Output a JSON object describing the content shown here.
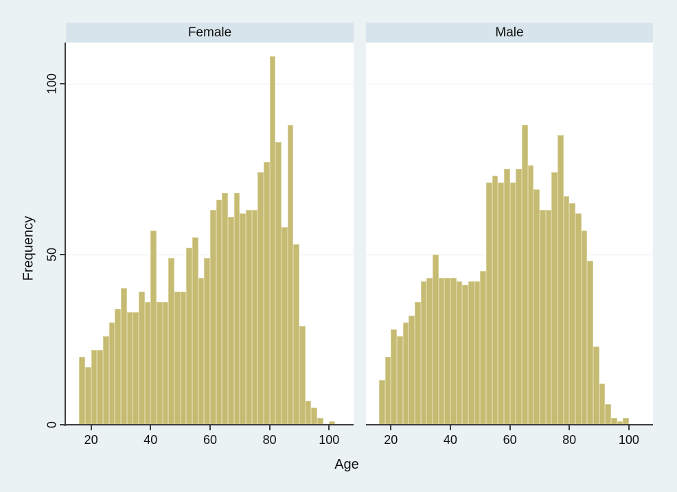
{
  "chart_data": {
    "type": "histogram",
    "faceted_by": "sex",
    "facet_titles": [
      "Female",
      "Male"
    ],
    "xlabel": "Age",
    "ylabel": "Frequency",
    "bin_width": 2,
    "x_ticks": [
      20,
      40,
      60,
      80,
      100
    ],
    "y_ticks": [
      0,
      50,
      100
    ],
    "ylim": [
      0,
      112
    ],
    "grid": "horizontal gridlines at y=50 and y=100",
    "legend": "none",
    "series": [
      {
        "name": "Female",
        "bin_start": 16,
        "frequencies": [
          20,
          17,
          22,
          22,
          26,
          30,
          34,
          40,
          33,
          33,
          39,
          36,
          57,
          36,
          36,
          49,
          39,
          39,
          52,
          55,
          43,
          49,
          63,
          66,
          68,
          61,
          68,
          62,
          63,
          63,
          74,
          77,
          108,
          83,
          58,
          88,
          53,
          29,
          7,
          5,
          2,
          0,
          1
        ]
      },
      {
        "name": "Male",
        "bin_start": 16,
        "frequencies": [
          13,
          20,
          28,
          26,
          30,
          32,
          36,
          42,
          43,
          50,
          43,
          43,
          43,
          42,
          41,
          42,
          42,
          45,
          71,
          73,
          71,
          75,
          71,
          75,
          88,
          76,
          69,
          63,
          63,
          74,
          85,
          67,
          65,
          62,
          57,
          48,
          23,
          12,
          6,
          2,
          1,
          2
        ]
      }
    ],
    "colors": {
      "bar_fill": "#c6bb72",
      "bar_outline": "#d8d09a",
      "figure_background": "#eaf2f3",
      "facet_header_background": "#d8e4ec",
      "plot_background": "#ffffff",
      "gridline": "#e2edf2",
      "axis": "#3c3c3c",
      "text": "#111111"
    }
  }
}
